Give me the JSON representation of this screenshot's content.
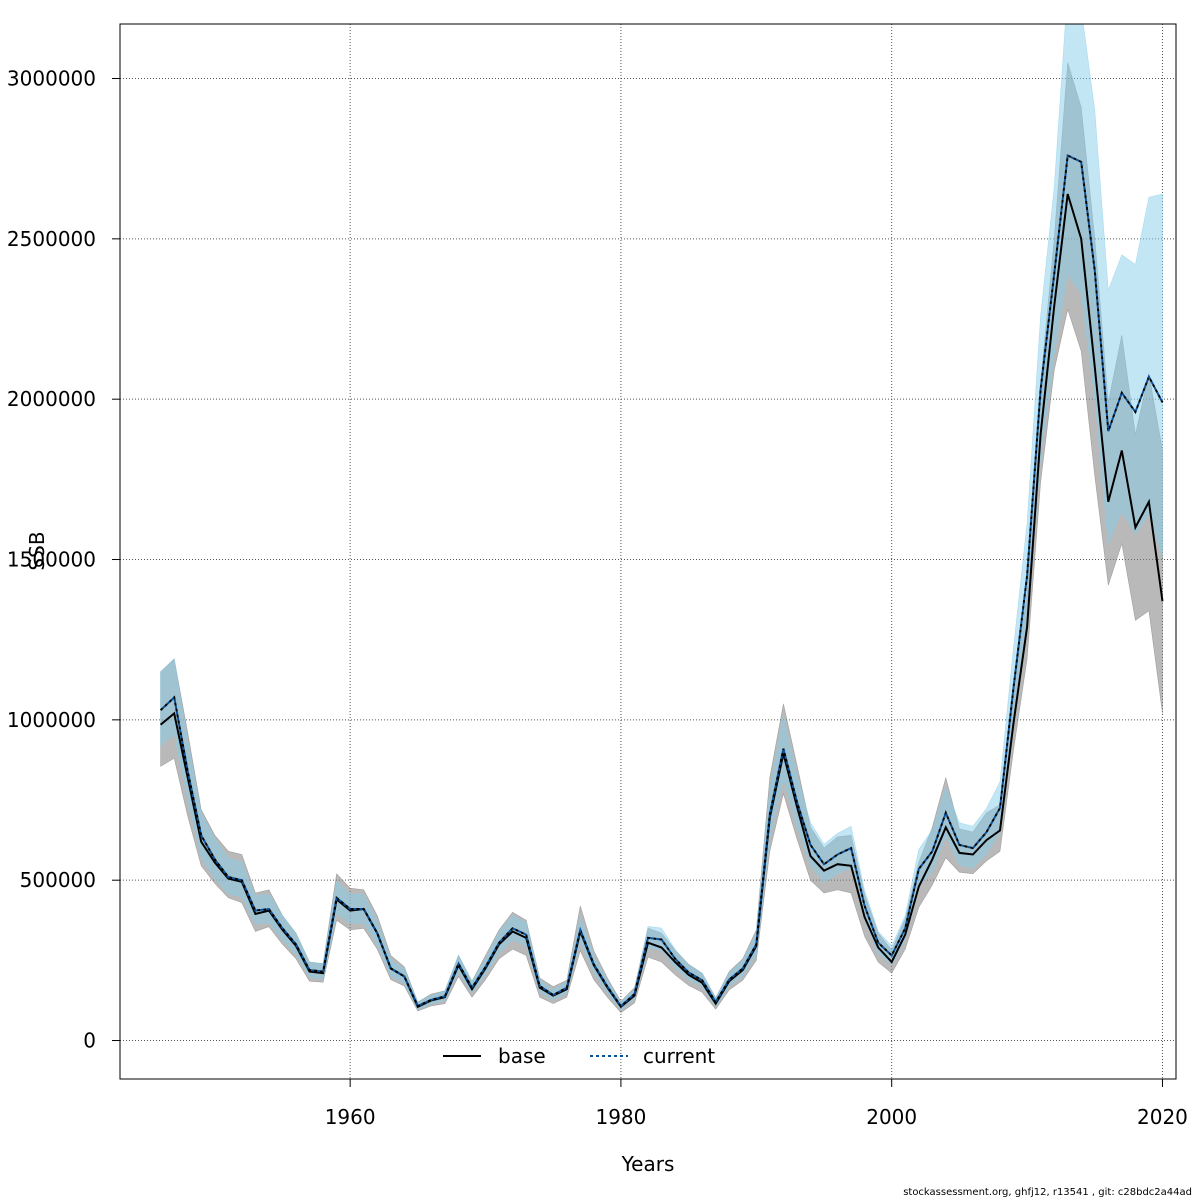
{
  "chart_data": {
    "type": "line",
    "title": "",
    "xlabel": "Years",
    "ylabel": "SSB",
    "xlim": [
      1943,
      2021
    ],
    "ylim": [
      -120000,
      3170000
    ],
    "xticks": [
      1960,
      1980,
      2000,
      2020
    ],
    "yticks": [
      0,
      500000,
      1000000,
      1500000,
      2000000,
      2500000,
      3000000
    ],
    "grid": true,
    "legend_position": "bottom",
    "x": [
      1946,
      1947,
      1948,
      1949,
      1950,
      1951,
      1952,
      1953,
      1954,
      1955,
      1956,
      1957,
      1958,
      1959,
      1960,
      1961,
      1962,
      1963,
      1964,
      1965,
      1966,
      1967,
      1968,
      1969,
      1970,
      1971,
      1972,
      1973,
      1974,
      1975,
      1976,
      1977,
      1978,
      1979,
      1980,
      1981,
      1982,
      1983,
      1984,
      1985,
      1986,
      1987,
      1988,
      1989,
      1990,
      1991,
      1992,
      1993,
      1994,
      1995,
      1996,
      1997,
      1998,
      1999,
      2000,
      2001,
      2002,
      2003,
      2004,
      2005,
      2006,
      2007,
      2008,
      2009,
      2010,
      2011,
      2012,
      2013,
      2014,
      2015,
      2016,
      2017,
      2018,
      2019,
      2020
    ],
    "series": [
      {
        "name": "base",
        "color": "#000000",
        "band_color": "#7f7f7f",
        "values": [
          985000,
          1020000,
          820000,
          620000,
          555000,
          505000,
          495000,
          395000,
          405000,
          345000,
          295000,
          215000,
          210000,
          440000,
          405000,
          410000,
          335000,
          225000,
          200000,
          105000,
          125000,
          135000,
          235000,
          160000,
          225000,
          300000,
          340000,
          320000,
          165000,
          140000,
          160000,
          340000,
          235000,
          165000,
          105000,
          140000,
          305000,
          290000,
          245000,
          205000,
          180000,
          115000,
          185000,
          220000,
          295000,
          695000,
          895000,
          730000,
          575000,
          530000,
          550000,
          545000,
          385000,
          290000,
          245000,
          330000,
          480000,
          565000,
          665000,
          585000,
          580000,
          625000,
          655000,
          990000,
          1290000,
          1890000,
          2290000,
          2640000,
          2500000,
          2100000,
          1680000,
          1840000,
          1600000,
          1680000,
          1370000
        ],
        "lower": [
          855000,
          880000,
          700000,
          545000,
          490000,
          445000,
          430000,
          340000,
          355000,
          300000,
          255000,
          185000,
          182000,
          375000,
          345000,
          350000,
          285000,
          190000,
          170000,
          92000,
          108000,
          115000,
          200000,
          135000,
          190000,
          255000,
          285000,
          265000,
          135000,
          115000,
          135000,
          280000,
          190000,
          135000,
          87000,
          117000,
          260000,
          245000,
          205000,
          172000,
          150000,
          98000,
          158000,
          188000,
          250000,
          590000,
          770000,
          630000,
          500000,
          460000,
          470000,
          460000,
          325000,
          245000,
          210000,
          285000,
          415000,
          485000,
          570000,
          525000,
          520000,
          560000,
          590000,
          905000,
          1190000,
          1740000,
          2090000,
          2280000,
          2150000,
          1760000,
          1420000,
          1550000,
          1310000,
          1340000,
          1020000
        ],
        "upper": [
          1150000,
          1190000,
          960000,
          720000,
          640000,
          590000,
          580000,
          460000,
          470000,
          390000,
          335000,
          245000,
          240000,
          520000,
          475000,
          470000,
          390000,
          265000,
          230000,
          120000,
          145000,
          155000,
          265000,
          185000,
          265000,
          345000,
          400000,
          375000,
          195000,
          168000,
          188000,
          420000,
          280000,
          195000,
          122000,
          165000,
          350000,
          335000,
          282000,
          238000,
          210000,
          133000,
          215000,
          255000,
          345000,
          820000,
          1050000,
          860000,
          665000,
          600000,
          635000,
          640000,
          455000,
          335000,
          282000,
          380000,
          555000,
          665000,
          820000,
          660000,
          650000,
          710000,
          735000,
          1090000,
          1400000,
          2050000,
          2500000,
          3050000,
          2910000,
          2500000,
          1990000,
          2200000,
          1890000,
          2080000,
          1840000
        ]
      },
      {
        "name": "current",
        "color": "#08519c",
        "band_color": "#87ceeb",
        "values": [
          1030000,
          1070000,
          840000,
          640000,
          565000,
          510000,
          500000,
          405000,
          410000,
          350000,
          300000,
          220000,
          215000,
          445000,
          410000,
          410000,
          335000,
          225000,
          200000,
          108000,
          127000,
          138000,
          240000,
          165000,
          230000,
          305000,
          350000,
          330000,
          170000,
          142000,
          165000,
          345000,
          238000,
          168000,
          107000,
          145000,
          320000,
          315000,
          255000,
          212000,
          188000,
          120000,
          190000,
          225000,
          300000,
          705000,
          910000,
          745000,
          610000,
          550000,
          580000,
          600000,
          420000,
          305000,
          265000,
          350000,
          535000,
          590000,
          710000,
          610000,
          600000,
          650000,
          725000,
          1100000,
          1450000,
          2030000,
          2390000,
          2760000,
          2740000,
          2400000,
          1900000,
          2020000,
          1960000,
          2070000,
          1990000
        ],
        "lower": [
          920000,
          955000,
          750000,
          572000,
          505000,
          457000,
          448000,
          363000,
          367000,
          313000,
          268000,
          197000,
          192000,
          398000,
          366000,
          366000,
          300000,
          201000,
          179000,
          97000,
          114000,
          124000,
          215000,
          148000,
          206000,
          274000,
          314000,
          296000,
          152000,
          127000,
          148000,
          309000,
          213000,
          150000,
          96000,
          130000,
          287000,
          282000,
          228000,
          190000,
          168000,
          107000,
          170000,
          201000,
          269000,
          632000,
          816000,
          668000,
          547000,
          493000,
          520000,
          538000,
          377000,
          273000,
          237000,
          314000,
          480000,
          529000,
          637000,
          547000,
          538000,
          583000,
          650000,
          987000,
          1300000,
          1820000,
          2140000,
          2390000,
          2330000,
          2000000,
          1550000,
          1650000,
          1580000,
          1640000,
          1510000
        ],
        "upper": [
          1150000,
          1190000,
          935000,
          712000,
          629000,
          568000,
          557000,
          451000,
          456000,
          390000,
          334000,
          245000,
          239000,
          495000,
          456000,
          456000,
          373000,
          251000,
          223000,
          120000,
          141000,
          154000,
          267000,
          184000,
          256000,
          340000,
          390000,
          368000,
          189000,
          158000,
          184000,
          384000,
          265000,
          187000,
          119000,
          161000,
          356000,
          351000,
          284000,
          236000,
          209000,
          134000,
          211000,
          250000,
          334000,
          785000,
          1013000,
          829000,
          680000,
          612000,
          646000,
          668000,
          468000,
          340000,
          295000,
          390000,
          596000,
          657000,
          790000,
          679000,
          668000,
          724000,
          807000,
          1225000,
          1615000,
          2260000,
          2660000,
          3280000,
          3220000,
          2900000,
          2340000,
          2450000,
          2420000,
          2630000,
          2640000
        ]
      }
    ]
  },
  "footer": "stockassessment.org, ghfj12, r13541 , git: c28bdc2a44ad"
}
